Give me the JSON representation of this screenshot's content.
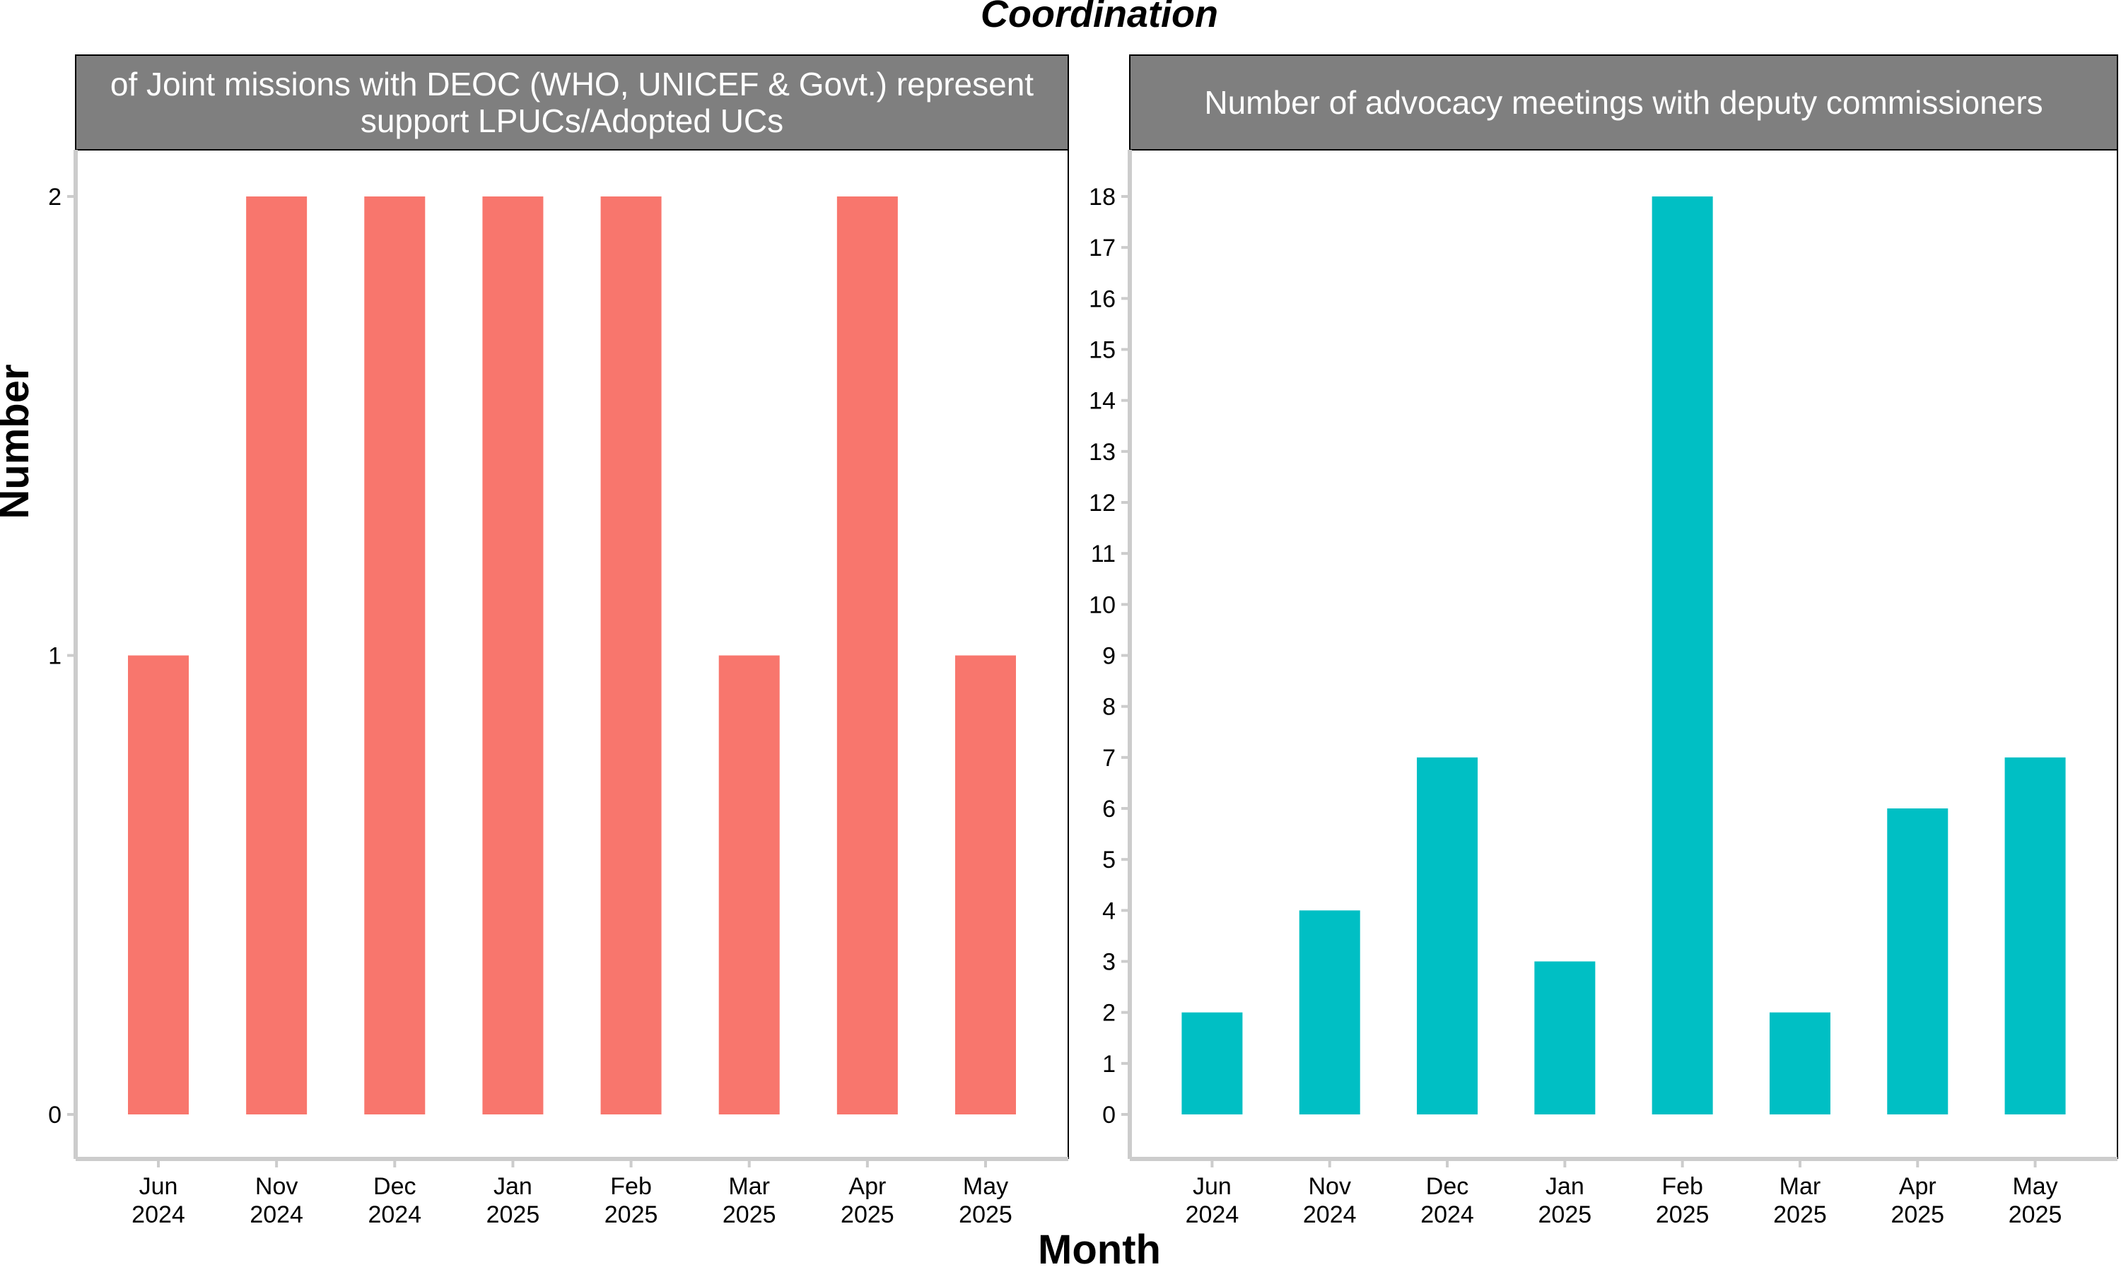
{
  "title": "Coordination",
  "xlabel": "Month",
  "ylabel": "Number",
  "chart_data": [
    {
      "type": "bar",
      "title": "Number of Joint missions with DEOC (WHO, UNICEF & Govt.) representatives to support LPUCs/Adopted UCs",
      "title_lines": [
        "of Joint missions with DEOC (WHO, UNICEF & Govt.) represent",
        "support LPUCs/Adopted UCs"
      ],
      "categories": [
        [
          "Jun",
          "2024"
        ],
        [
          "Nov",
          "2024"
        ],
        [
          "Dec",
          "2024"
        ],
        [
          "Jan",
          "2025"
        ],
        [
          "Feb",
          "2025"
        ],
        [
          "Mar",
          "2025"
        ],
        [
          "Apr",
          "2025"
        ],
        [
          "May",
          "2025"
        ]
      ],
      "values": [
        1,
        2,
        2,
        2,
        2,
        1,
        2,
        1
      ],
      "ylim": [
        0,
        2
      ],
      "yticks": [
        0,
        1,
        2
      ],
      "color": "#F8766D"
    },
    {
      "type": "bar",
      "title": "Number of advocacy meetings with deputy commissioners",
      "title_lines": [
        "Number of advocacy meetings with deputy commissioners"
      ],
      "categories": [
        [
          "Jun",
          "2024"
        ],
        [
          "Nov",
          "2024"
        ],
        [
          "Dec",
          "2024"
        ],
        [
          "Jan",
          "2025"
        ],
        [
          "Feb",
          "2025"
        ],
        [
          "Mar",
          "2025"
        ],
        [
          "Apr",
          "2025"
        ],
        [
          "May",
          "2025"
        ]
      ],
      "values": [
        2,
        4,
        7,
        3,
        18,
        2,
        6,
        7
      ],
      "ylim": [
        0,
        18
      ],
      "yticks": [
        0,
        1,
        2,
        3,
        4,
        5,
        6,
        7,
        8,
        9,
        10,
        11,
        12,
        13,
        14,
        15,
        16,
        17,
        18
      ],
      "color": "#00BFC4"
    }
  ],
  "style": {
    "strip_fill": "#7F7F7F",
    "axis_color": "#CCCCCC",
    "panel_border": "#000000",
    "grid": false,
    "legend": "none"
  }
}
